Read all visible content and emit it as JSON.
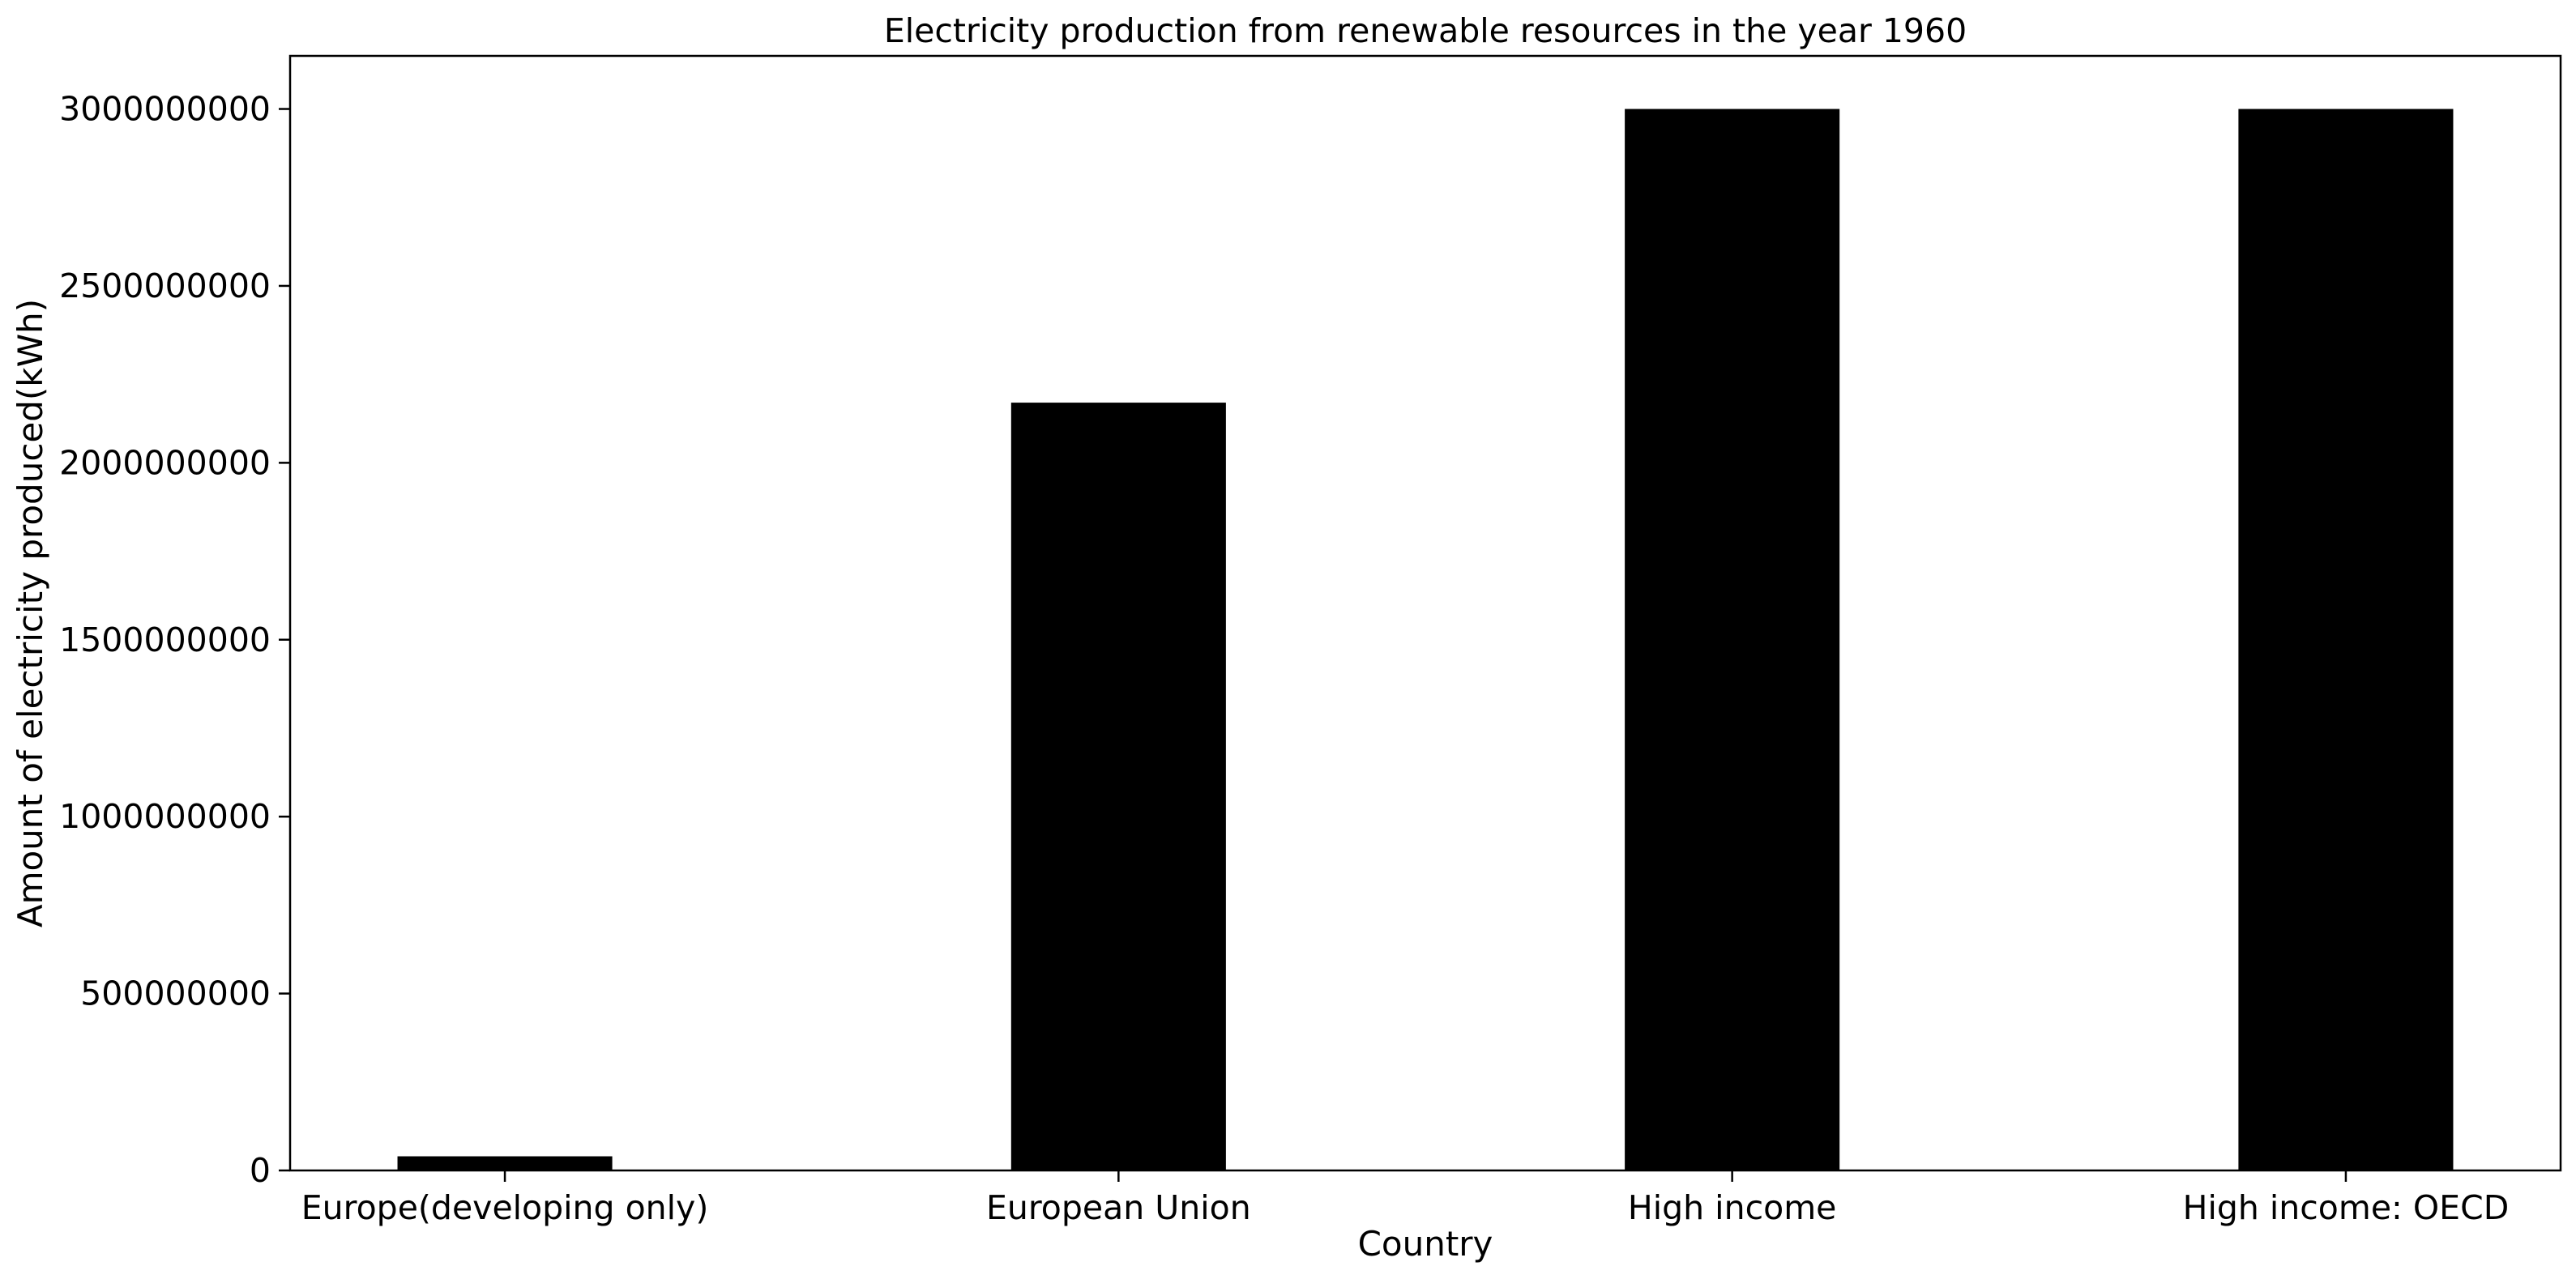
{
  "chart_data": {
    "type": "bar",
    "title": "Electricity production from renewable resources in the year 1960",
    "xlabel": "Country",
    "ylabel": "Amount of electricity produced(kWh)",
    "categories": [
      "Europe(developing only)",
      "European Union",
      "High income",
      "High income: OECD"
    ],
    "values": [
      40000000,
      2170000000,
      3000000000,
      3000000000
    ],
    "ylim": [
      0,
      3150000000
    ],
    "yticks": [
      0,
      500000000,
      1000000000,
      1500000000,
      2000000000,
      2500000000,
      3000000000
    ],
    "ytick_labels": [
      "0",
      "500000000",
      "1000000000",
      "1500000000",
      "2000000000",
      "2500000000",
      "3000000000"
    ],
    "bar_color": "#000000",
    "grid": false,
    "legend": "none"
  }
}
